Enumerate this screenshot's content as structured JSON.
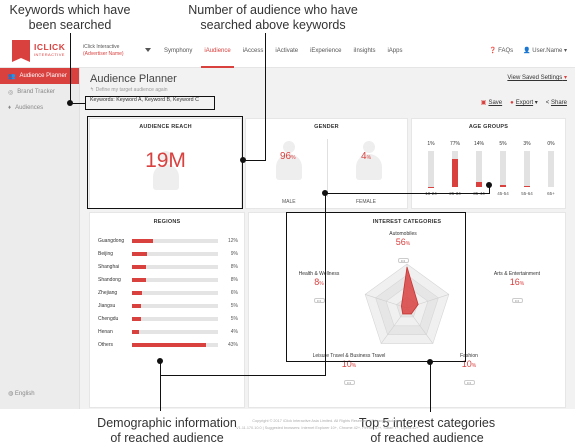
{
  "annotations": {
    "keywords_searched": "Keywords which have been searched",
    "audience_count": "Number of audience who have searched above keywords",
    "demographic": "Demographic information of reached audience",
    "interests": "Top 5 interest categories of reached audience"
  },
  "header": {
    "logo_text": "ICLICK",
    "logo_sub": "INTERACTIVE",
    "advertiser_line1": "iClick Interactive",
    "advertiser_line2": "(Advertiser Name)",
    "nav": [
      "Symphony",
      "iAudience",
      "iAccess",
      "iActivate",
      "iExperience",
      "iInsights",
      "iApps"
    ],
    "active_nav": "iAudience",
    "faqs": "FAQs",
    "user": "User.Name"
  },
  "sidebar": {
    "items": [
      "Audience Planner",
      "Brand Tracker",
      "Audiences"
    ],
    "language": "English"
  },
  "page": {
    "title": "Audience Planner",
    "define_link": "Define my target audience again",
    "keywords": "Keywords: Keyword A, Keyword B, Keyword C",
    "view_saved": "View Saved Settings",
    "save": "Save",
    "export": "Export",
    "share": "Share"
  },
  "reach": {
    "title": "AUDIENCE REACH",
    "value": "19M"
  },
  "gender": {
    "title": "GENDER",
    "male": {
      "pct": "96",
      "label": "MALE"
    },
    "female": {
      "pct": "4",
      "label": "FEMALE"
    },
    "unit": "%"
  },
  "age": {
    "title": "AGE GROUPS",
    "groups": [
      {
        "label": "18-24",
        "pct": "1%",
        "value": 1
      },
      {
        "label": "25-34",
        "pct": "77%",
        "value": 77
      },
      {
        "label": "35-44",
        "pct": "14%",
        "value": 14
      },
      {
        "label": "45-54",
        "pct": "5%",
        "value": 5
      },
      {
        "label": "55-64",
        "pct": "3%",
        "value": 3
      },
      {
        "label": "65+",
        "pct": "0%",
        "value": 0
      }
    ]
  },
  "regions": {
    "title": "REGIONS",
    "rows": [
      {
        "name": "Guangdong",
        "pct": "12%",
        "value": 12
      },
      {
        "name": "Beijing",
        "pct": "9%",
        "value": 9
      },
      {
        "name": "Shanghai",
        "pct": "8%",
        "value": 8
      },
      {
        "name": "Shandong",
        "pct": "8%",
        "value": 8
      },
      {
        "name": "Zhejiang",
        "pct": "6%",
        "value": 6
      },
      {
        "name": "Jiangsu",
        "pct": "5%",
        "value": 5
      },
      {
        "name": "Chengdu",
        "pct": "5%",
        "value": 5
      },
      {
        "name": "Henan",
        "pct": "4%",
        "value": 4
      },
      {
        "name": "Others",
        "pct": "43%",
        "value": 43
      }
    ]
  },
  "interests": {
    "title": "INTEREST CATEGORIES",
    "unit": "%",
    "more": "•••",
    "items": [
      {
        "name": "Automobiles",
        "pct": "56",
        "value": 56
      },
      {
        "name": "Arts & Entertainment",
        "pct": "16",
        "value": 16
      },
      {
        "name": "Fashion",
        "pct": "10",
        "value": 10
      },
      {
        "name": "Leisure Travel & Business Travel",
        "pct": "10",
        "value": 10
      },
      {
        "name": "Health & Wellness",
        "pct": "8",
        "value": 8
      }
    ]
  },
  "footer": {
    "line1": "Copyright © 2017 iClick Interactive Asia Limited. All Rights Reserved. | Privacy Disclaimer",
    "line2": "V1.11.170.10.0 | Suggested browsers: Internet Explorer 10+, Chrome 42+, Firefox 37+, Safari 7+, Opera 42+"
  },
  "colors": {
    "accent": "#d9413f",
    "annotation": "#111111"
  }
}
